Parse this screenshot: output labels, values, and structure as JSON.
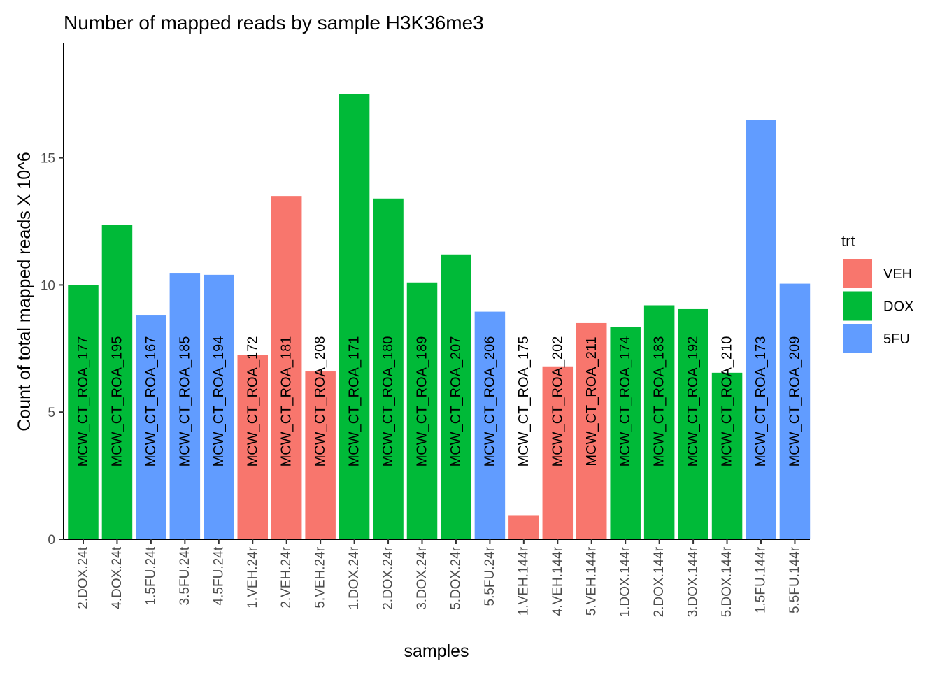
{
  "chart_data": {
    "type": "bar",
    "title": "Number of mapped reads by sample H3K36me3",
    "xlabel": "samples",
    "ylabel": "Count of total mapped reads X 10^6",
    "ylim": [
      0,
      19.5
    ],
    "yticks": [
      0,
      5,
      10,
      15
    ],
    "grid": false,
    "legend": {
      "title": "trt",
      "position": "right",
      "entries": [
        {
          "label": "VEH",
          "color": "#F8766D"
        },
        {
          "label": "DOX",
          "color": "#00BA38"
        },
        {
          "label": "5FU",
          "color": "#619CFF"
        }
      ]
    },
    "categories": [
      "2.DOX.24t",
      "4.DOX.24t",
      "1.5FU.24t",
      "3.5FU.24t",
      "4.5FU.24t",
      "1.VEH.24r",
      "2.VEH.24r",
      "5.VEH.24r",
      "1.DOX.24r",
      "2.DOX.24r",
      "3.DOX.24r",
      "5.DOX.24r",
      "5.5FU.24r",
      "1.VEH.144r",
      "4.VEH.144r",
      "5.VEH.144r",
      "1.DOX.144r",
      "2.DOX.144r",
      "3.DOX.144r",
      "5.DOX.144r",
      "1.5FU.144r",
      "5.5FU.144r"
    ],
    "values": [
      10.0,
      12.35,
      8.8,
      10.45,
      10.4,
      7.25,
      13.5,
      6.6,
      17.5,
      13.4,
      10.1,
      11.2,
      8.95,
      0.95,
      6.8,
      8.5,
      8.35,
      9.2,
      9.05,
      6.55,
      16.5,
      10.05
    ],
    "group": [
      "DOX",
      "DOX",
      "5FU",
      "5FU",
      "5FU",
      "VEH",
      "VEH",
      "VEH",
      "DOX",
      "DOX",
      "DOX",
      "DOX",
      "5FU",
      "VEH",
      "VEH",
      "VEH",
      "DOX",
      "DOX",
      "DOX",
      "DOX",
      "5FU",
      "5FU"
    ],
    "bar_labels": [
      "MCW_CT_ROA_177",
      "MCW_CT_ROA_195",
      "MCW_CT_ROA_167",
      "MCW_CT_ROA_185",
      "MCW_CT_ROA_194",
      "MCW_CT_ROA_172",
      "MCW_CT_ROA_181",
      "MCW_CT_ROA_208",
      "MCW_CT_ROA_171",
      "MCW_CT_ROA_180",
      "MCW_CT_ROA_189",
      "MCW_CT_ROA_207",
      "MCW_CT_ROA_206",
      "MCW_CT_ROA_175",
      "MCW_CT_ROA_202",
      "MCW_CT_ROA_211",
      "MCW_CT_ROA_174",
      "MCW_CT_ROA_183",
      "MCW_CT_ROA_192",
      "MCW_CT_ROA_210",
      "MCW_CT_ROA_173",
      "MCW_CT_ROA_209"
    ]
  }
}
